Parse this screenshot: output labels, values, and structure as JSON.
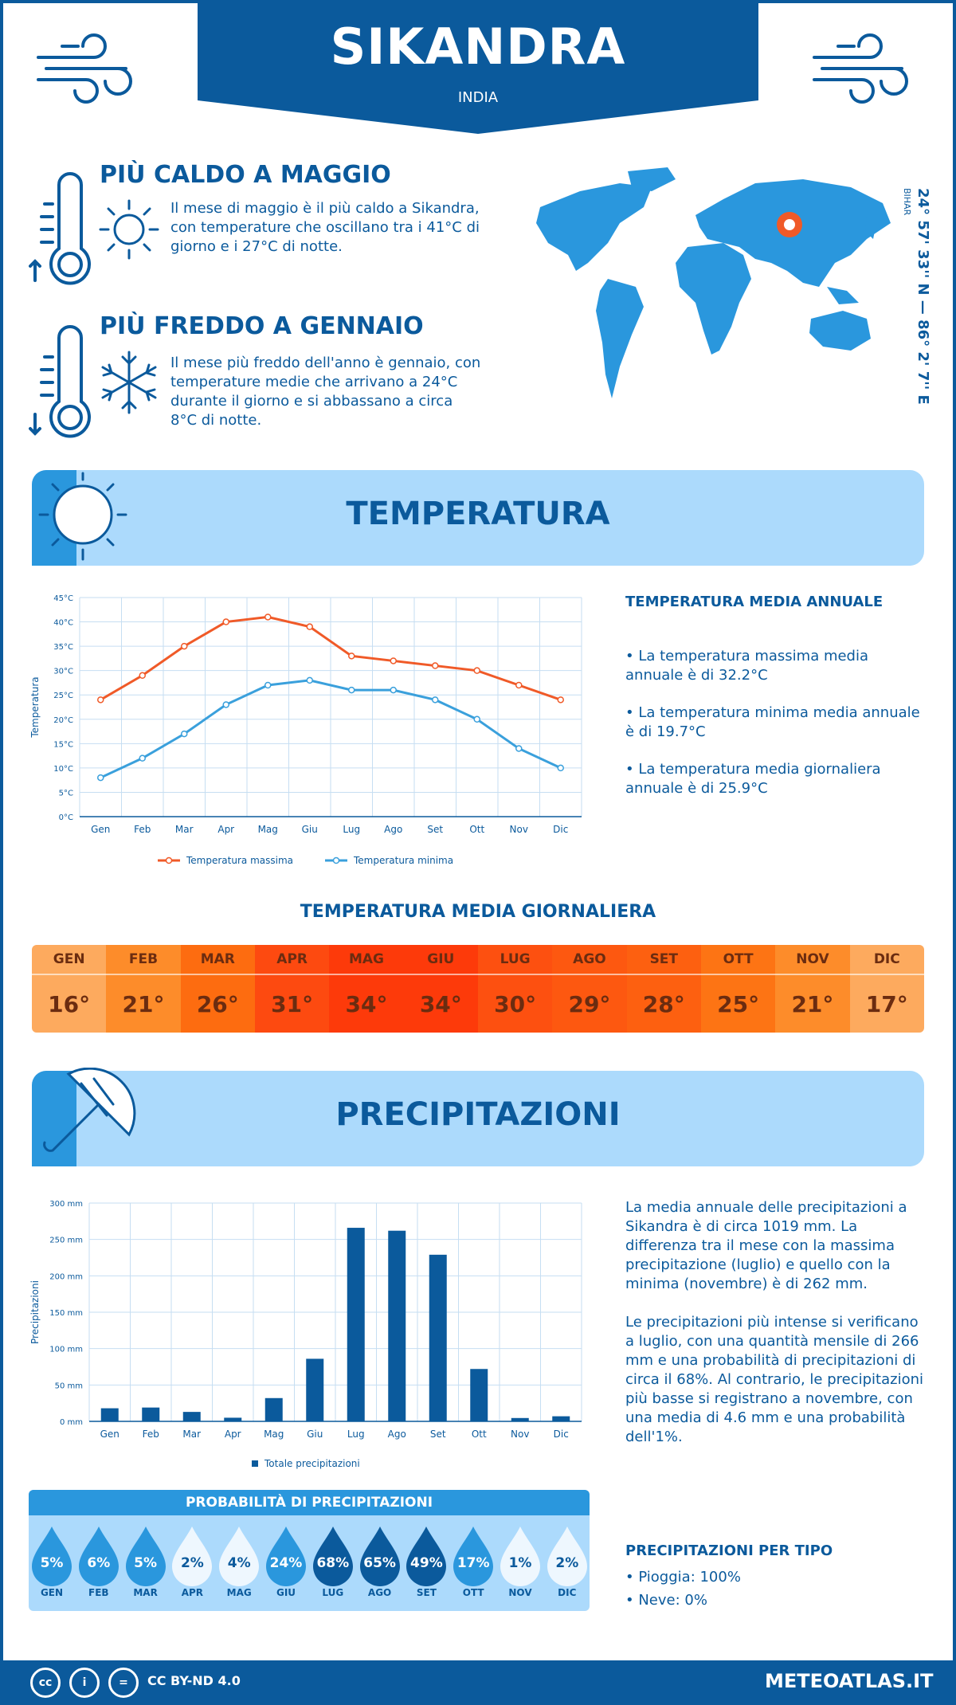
{
  "header": {
    "city": "SIKANDRA",
    "country": "INDIA"
  },
  "hot": {
    "title": "PIÙ CALDO A MAGGIO",
    "text": "Il mese di maggio è il più caldo a Sikandra, con temperature che oscillano tra i 41°C di giorno e i 27°C di notte."
  },
  "cold": {
    "title": "PIÙ FREDDO A GENNAIO",
    "text": "Il mese più freddo dell'anno è gennaio, con temperature medie che arrivano a 24°C durante il giorno e si abbassano a circa 8°C di notte."
  },
  "location": {
    "coords": "24° 57' 33'' N — 86° 2' 7'' E",
    "region": "BIHAR"
  },
  "temperature": {
    "section_title": "TEMPERATURA",
    "annual_title": "TEMPERATURA MEDIA ANNUALE",
    "annual_max": "• La temperatura massima media annuale è di 32.2°C",
    "annual_min": "• La temperatura minima media annuale è di 19.7°C",
    "annual_avg": "• La temperatura media giornaliera annuale è di 25.9°C",
    "daily_title": "TEMPERATURA MEDIA GIORNALIERA",
    "daily": [
      {
        "month": "GEN",
        "value": "16°",
        "color": "#fdaa5e"
      },
      {
        "month": "FEB",
        "value": "21°",
        "color": "#fd8c2a"
      },
      {
        "month": "MAR",
        "value": "26°",
        "color": "#fd6c10"
      },
      {
        "month": "APR",
        "value": "31°",
        "color": "#fd4a10"
      },
      {
        "month": "MAG",
        "value": "34°",
        "color": "#fd3a0a"
      },
      {
        "month": "GIU",
        "value": "34°",
        "color": "#fd3a0a"
      },
      {
        "month": "LUG",
        "value": "30°",
        "color": "#fd5010"
      },
      {
        "month": "AGO",
        "value": "29°",
        "color": "#fd5810"
      },
      {
        "month": "SET",
        "value": "28°",
        "color": "#fd6010"
      },
      {
        "month": "OTT",
        "value": "25°",
        "color": "#fd7414"
      },
      {
        "month": "NOV",
        "value": "21°",
        "color": "#fd8c2a"
      },
      {
        "month": "DIC",
        "value": "17°",
        "color": "#fdaa5e"
      }
    ]
  },
  "precipitation": {
    "section_title": "PRECIPITAZIONI",
    "text1": "La media annuale delle precipitazioni a Sikandra è di circa 1019 mm. La differenza tra il mese con la massima precipitazione (luglio) e quello con la minima (novembre) è di 262 mm.",
    "text2": "Le precipitazioni più intense si verificano a luglio, con una quantità mensile di 266 mm e una probabilità di precipitazioni di circa il 68%. Al contrario, le precipitazioni più basse si registrano a novembre, con una media di 4.6 mm e una probabilità dell'1%.",
    "prob_title": "PROBABILITÀ DI PRECIPITAZIONI",
    "prob": [
      {
        "month": "GEN",
        "value": "5%",
        "level": 0.05
      },
      {
        "month": "FEB",
        "value": "6%",
        "level": 0.06
      },
      {
        "month": "MAR",
        "value": "5%",
        "level": 0.05
      },
      {
        "month": "APR",
        "value": "2%",
        "level": 0.02
      },
      {
        "month": "MAG",
        "value": "4%",
        "level": 0.04
      },
      {
        "month": "GIU",
        "value": "24%",
        "level": 0.24
      },
      {
        "month": "LUG",
        "value": "68%",
        "level": 0.68
      },
      {
        "month": "AGO",
        "value": "65%",
        "level": 0.65
      },
      {
        "month": "SET",
        "value": "49%",
        "level": 0.49
      },
      {
        "month": "OTT",
        "value": "17%",
        "level": 0.17
      },
      {
        "month": "NOV",
        "value": "1%",
        "level": 0.01
      },
      {
        "month": "DIC",
        "value": "2%",
        "level": 0.02
      }
    ],
    "type_title": "PRECIPITAZIONI PER TIPO",
    "type_rain": "• Pioggia: 100%",
    "type_snow": "• Neve: 0%"
  },
  "footer": {
    "license": "CC BY-ND 4.0",
    "brand": "METEOATLAS.IT"
  },
  "colors": {
    "primary": "#0b5a9c",
    "light": "#acdafc",
    "accent": "#2a97dd",
    "max_line": "#f05a28",
    "min_line": "#3aa0dc"
  },
  "chart_data": [
    {
      "type": "line",
      "categories": [
        "Gen",
        "Feb",
        "Mar",
        "Apr",
        "Mag",
        "Giu",
        "Lug",
        "Ago",
        "Set",
        "Ott",
        "Nov",
        "Dic"
      ],
      "series": [
        {
          "name": "Temperatura massima",
          "values": [
            24,
            29,
            35,
            40,
            41,
            39,
            33,
            32,
            31,
            30,
            27,
            24
          ]
        },
        {
          "name": "Temperatura minima",
          "values": [
            8,
            12,
            17,
            23,
            27,
            28,
            26,
            26,
            24,
            20,
            14,
            10
          ]
        }
      ],
      "ylabel": "Temperatura",
      "yticks": [
        "0°C",
        "5°C",
        "10°C",
        "15°C",
        "20°C",
        "25°C",
        "30°C",
        "35°C",
        "40°C",
        "45°C"
      ],
      "ylim": [
        0,
        45
      ]
    },
    {
      "type": "bar",
      "categories": [
        "Gen",
        "Feb",
        "Mar",
        "Apr",
        "Mag",
        "Giu",
        "Lug",
        "Ago",
        "Set",
        "Ott",
        "Nov",
        "Dic"
      ],
      "series": [
        {
          "name": "Totale precipitazioni",
          "values": [
            18,
            19,
            13,
            5,
            32,
            86,
            266,
            262,
            229,
            72,
            4.6,
            7
          ]
        }
      ],
      "ylabel": "Precipitazioni",
      "yticks": [
        "0 mm",
        "50 mm",
        "100 mm",
        "150 mm",
        "200 mm",
        "250 mm",
        "300 mm"
      ],
      "ylim": [
        0,
        300
      ]
    }
  ]
}
